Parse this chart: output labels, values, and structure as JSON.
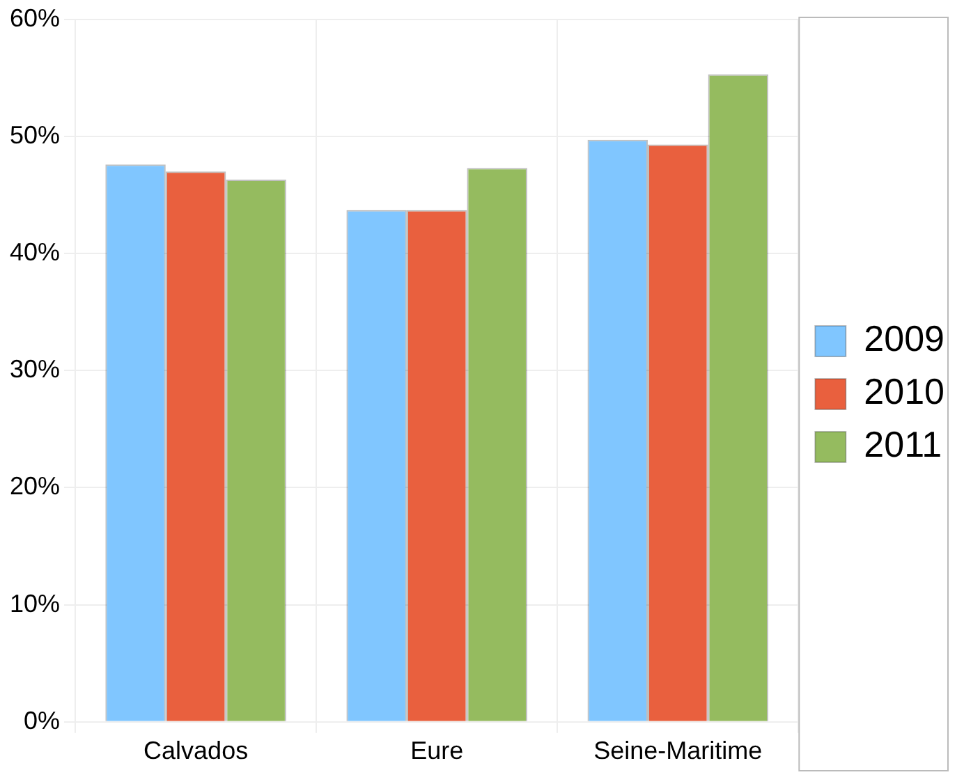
{
  "chart_data": {
    "type": "bar",
    "categories": [
      "Calvados",
      "Eure",
      "Seine-Maritime"
    ],
    "series": [
      {
        "name": "2009",
        "color": "#80c6ff",
        "values": [
          47.6,
          43.7,
          49.7
        ]
      },
      {
        "name": "2010",
        "color": "#e9603e",
        "values": [
          47.0,
          43.7,
          49.3
        ]
      },
      {
        "name": "2011",
        "color": "#95bb5f",
        "values": [
          46.3,
          47.3,
          55.3
        ]
      }
    ],
    "ylim": [
      0,
      60
    ],
    "yticks": [
      {
        "value": 0,
        "label": "0%"
      },
      {
        "value": 10,
        "label": "10%"
      },
      {
        "value": 20,
        "label": "20%"
      },
      {
        "value": 30,
        "label": "30%"
      },
      {
        "value": 40,
        "label": "40%"
      },
      {
        "value": 50,
        "label": "50%"
      },
      {
        "value": 60,
        "label": "60%"
      }
    ],
    "grid": true,
    "legend": "right"
  }
}
